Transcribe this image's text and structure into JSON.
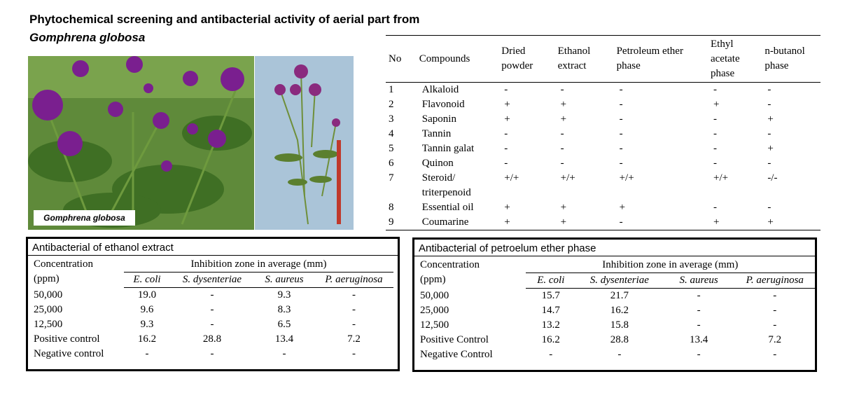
{
  "title": "Phytochemical screening and antibacterial activity of aerial part from",
  "title_species": "Gomphrena globosa",
  "photo_caption": "Gomphrena globosa",
  "screening": {
    "headers": [
      "No",
      "Compounds",
      "Dried powder",
      "Ethanol extract",
      "Petroleum ether phase",
      "Ethyl acetate phase",
      "n-butanol phase"
    ],
    "rows": [
      [
        "1",
        "Alkaloid",
        "-",
        "-",
        "-",
        "-",
        "-"
      ],
      [
        "2",
        "Flavonoid",
        "+",
        "+",
        "-",
        "+",
        "-"
      ],
      [
        "3",
        "Saponin",
        "+",
        "+",
        "-",
        "-",
        "+"
      ],
      [
        "4",
        "Tannin",
        "-",
        "-",
        "-",
        "-",
        "-"
      ],
      [
        "5",
        "Tannin galat",
        "-",
        "-",
        "-",
        "-",
        "+"
      ],
      [
        "6",
        "Quinon",
        "-",
        "-",
        "-",
        "-",
        "-"
      ],
      [
        "7",
        "Steroid/ triterpenoid",
        "+/+",
        "+/+",
        "+/+",
        "+/+",
        "-/-"
      ],
      [
        "8",
        "Essential oil",
        "+",
        "+",
        "+",
        "-",
        "-"
      ],
      [
        "9",
        "Coumarine",
        "+",
        "+",
        "-",
        "+",
        "+"
      ]
    ]
  },
  "ethanol": {
    "title": "Antibacterial of ethanol extract",
    "concentration_header": "Concentration (ppm)",
    "group_header": "Inhibition zone in average (mm)",
    "bacteria": [
      "E. coli",
      "S. dysenteriae",
      "S. aureus",
      "P. aeruginosa"
    ],
    "rows": [
      [
        "50,000",
        "19.0",
        "-",
        "9.3",
        "-"
      ],
      [
        "25,000",
        "9.6",
        "-",
        "8.3",
        "-"
      ],
      [
        "12,500",
        "9.3",
        "-",
        "6.5",
        "-"
      ],
      [
        "Positive control",
        "16.2",
        "28.8",
        "13.4",
        "7.2"
      ],
      [
        "Negative control",
        "-",
        "-",
        "-",
        "-"
      ]
    ]
  },
  "petroleum": {
    "title": "Antibacterial of petroelum ether phase",
    "concentration_header": "Concentration (ppm)",
    "group_header": "Inhibition zone in average (mm)",
    "bacteria": [
      "E. coli",
      "S. dysenteriae",
      "S. aureus",
      "P. aeruginosa"
    ],
    "rows": [
      [
        "50,000",
        "15.7",
        "21.7",
        "-",
        "-"
      ],
      [
        "25,000",
        "14.7",
        "16.2",
        "-",
        "-"
      ],
      [
        "12,500",
        "13.2",
        "15.8",
        "-",
        "-"
      ],
      [
        "Positive Control",
        "16.2",
        "28.8",
        "13.4",
        "7.2"
      ],
      [
        "Negative Control",
        "-",
        "-",
        "-",
        "-"
      ]
    ]
  }
}
